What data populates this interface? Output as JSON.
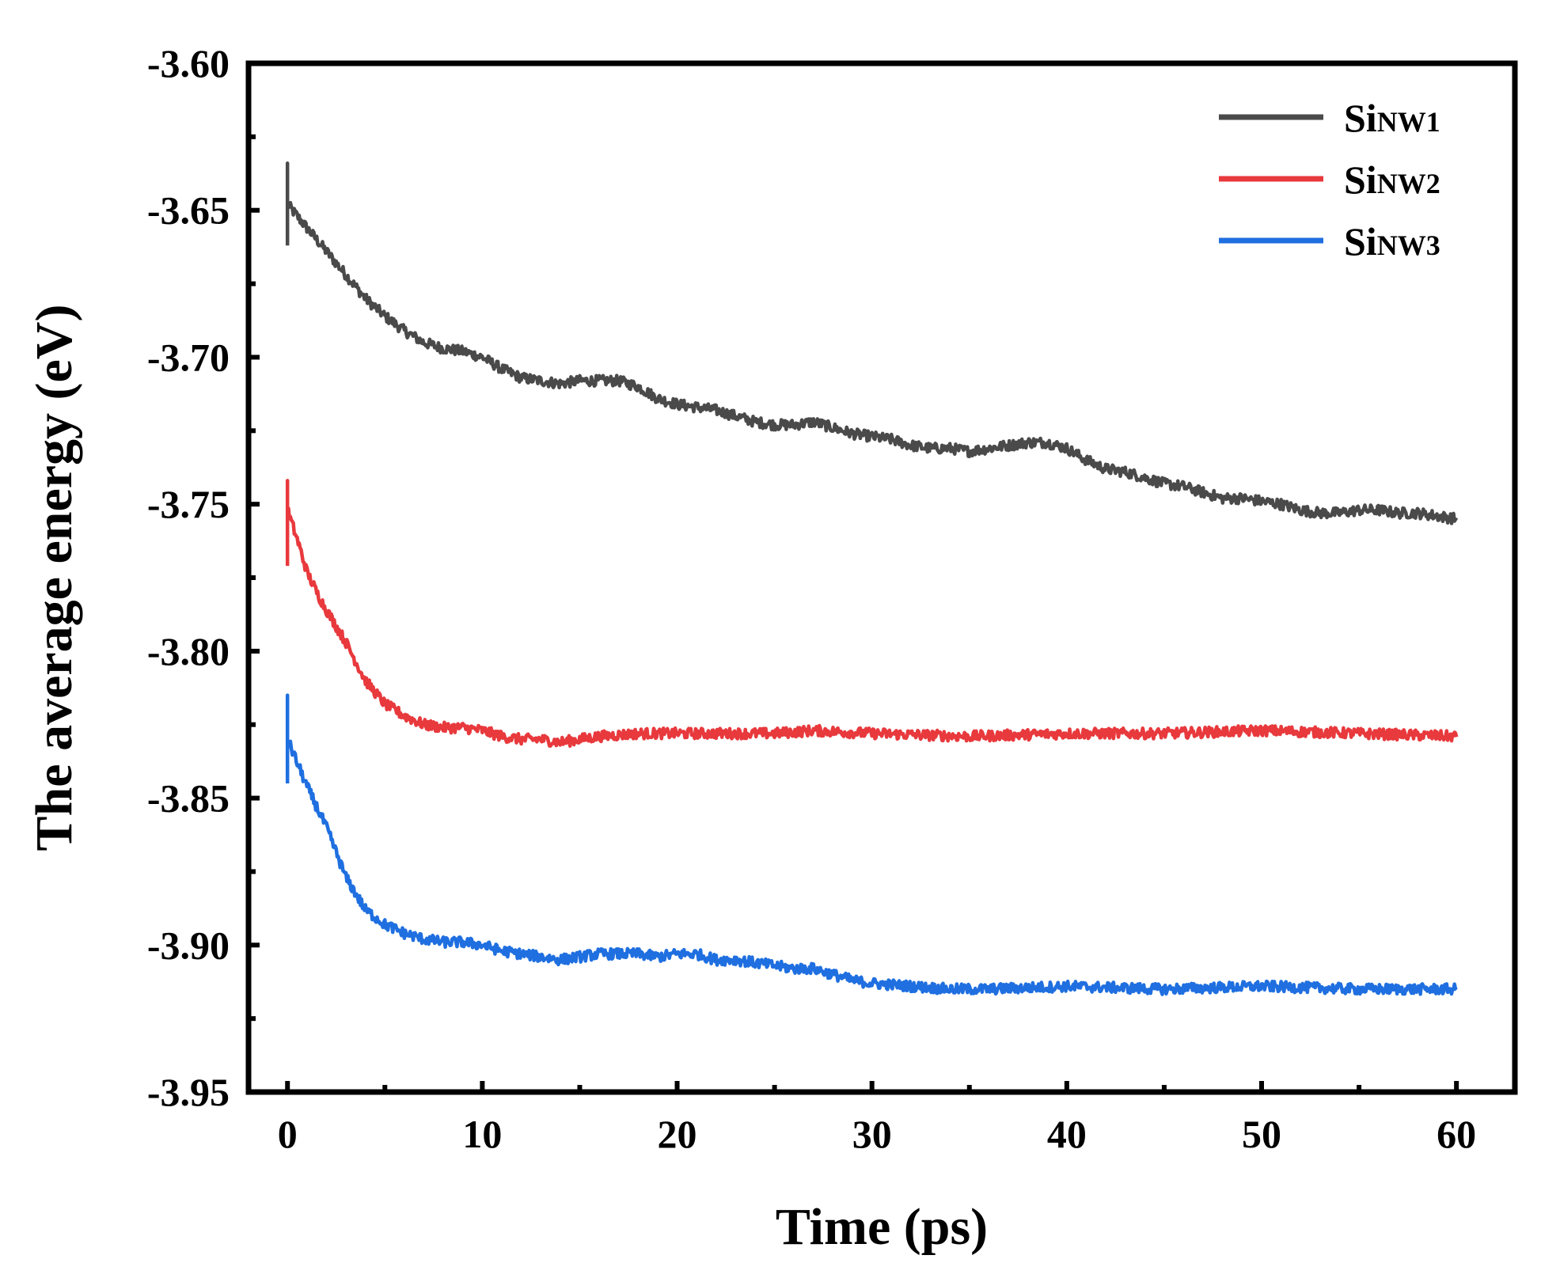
{
  "chart_data": {
    "type": "line",
    "title": "",
    "xlabel": "Time (ps)",
    "ylabel": "The average energy (eV)",
    "xlim": [
      -2,
      63
    ],
    "ylim": [
      -3.95,
      -3.6
    ],
    "xticks": [
      0,
      10,
      20,
      30,
      40,
      50,
      60
    ],
    "yticks": [
      -3.95,
      -3.9,
      -3.85,
      -3.8,
      -3.75,
      -3.7,
      -3.65,
      -3.6
    ],
    "xtick_labels": [
      "0",
      "10",
      "20",
      "30",
      "40",
      "50",
      "60"
    ],
    "ytick_labels": [
      "-3.95",
      "-3.90",
      "-3.85",
      "-3.80",
      "-3.75",
      "-3.70",
      "-3.65",
      "-3.60"
    ],
    "grid": false,
    "legend_position": "top-right",
    "noise_amplitude": 0.0018,
    "series": [
      {
        "name": "SiNW1",
        "legend_main": "Si",
        "legend_sub": "NW1",
        "color": "#4a4a4a",
        "start_spike": [
          -3.662,
          -3.634
        ],
        "x": [
          0,
          0.5,
          1,
          2,
          3,
          4,
          5,
          6,
          7,
          8,
          9,
          10,
          11,
          12,
          13,
          14,
          15,
          16,
          17,
          18,
          19,
          20,
          21,
          22,
          23,
          24,
          25,
          26,
          27,
          28,
          29,
          30,
          31,
          32,
          33,
          34,
          35,
          36,
          37,
          38,
          39,
          40,
          41,
          42,
          43,
          44,
          45,
          46,
          47,
          48,
          49,
          50,
          51,
          52,
          53,
          54,
          55,
          56,
          57,
          58,
          59,
          60
        ],
        "y": [
          -3.648,
          -3.652,
          -3.656,
          -3.664,
          -3.672,
          -3.68,
          -3.686,
          -3.691,
          -3.695,
          -3.697,
          -3.698,
          -3.7,
          -3.704,
          -3.707,
          -3.708,
          -3.709,
          -3.708,
          -3.708,
          -3.708,
          -3.71,
          -3.714,
          -3.716,
          -3.717,
          -3.718,
          -3.72,
          -3.722,
          -3.723,
          -3.723,
          -3.722,
          -3.724,
          -3.726,
          -3.727,
          -3.728,
          -3.73,
          -3.731,
          -3.731,
          -3.732,
          -3.731,
          -3.73,
          -3.729,
          -3.729,
          -3.731,
          -3.735,
          -3.738,
          -3.739,
          -3.741,
          -3.743,
          -3.744,
          -3.746,
          -3.748,
          -3.748,
          -3.749,
          -3.75,
          -3.752,
          -3.753,
          -3.753,
          -3.752,
          -3.752,
          -3.753,
          -3.753,
          -3.754,
          -3.755
        ]
      },
      {
        "name": "SiNW2",
        "legend_main": "Si",
        "legend_sub": "NW2",
        "color": "#e8393d",
        "start_spike": [
          -3.771,
          -3.742
        ],
        "x": [
          0,
          0.5,
          1,
          1.5,
          2,
          3,
          4,
          5,
          6,
          7,
          8,
          9,
          10,
          11,
          12,
          13,
          14,
          15,
          16,
          18,
          20,
          22,
          25,
          27,
          30,
          35,
          40,
          45,
          50,
          55,
          60
        ],
        "y": [
          -3.752,
          -3.762,
          -3.773,
          -3.78,
          -3.786,
          -3.797,
          -3.81,
          -3.818,
          -3.822,
          -3.825,
          -3.826,
          -3.826,
          -3.827,
          -3.829,
          -3.83,
          -3.83,
          -3.831,
          -3.83,
          -3.829,
          -3.828,
          -3.828,
          -3.828,
          -3.828,
          -3.827,
          -3.828,
          -3.829,
          -3.828,
          -3.828,
          -3.827,
          -3.828,
          -3.829
        ]
      },
      {
        "name": "SiNW3",
        "legend_main": "Si",
        "legend_sub": "NW3",
        "color": "#1f6fe0",
        "start_spike": [
          -3.845,
          -3.815
        ],
        "x": [
          0,
          0.5,
          1,
          1.5,
          2,
          3,
          4,
          5,
          6,
          7,
          8,
          9,
          10,
          11,
          12,
          13,
          14,
          15,
          16,
          17,
          18,
          19,
          20,
          21,
          22,
          23,
          24,
          25,
          26,
          27,
          28,
          29,
          30,
          32,
          34,
          36,
          40,
          45,
          50,
          55,
          60
        ],
        "y": [
          -3.83,
          -3.838,
          -3.846,
          -3.853,
          -3.86,
          -3.877,
          -3.888,
          -3.893,
          -3.896,
          -3.898,
          -3.899,
          -3.899,
          -3.9,
          -3.902,
          -3.903,
          -3.904,
          -3.905,
          -3.904,
          -3.903,
          -3.903,
          -3.903,
          -3.904,
          -3.903,
          -3.903,
          -3.905,
          -3.905,
          -3.906,
          -3.907,
          -3.908,
          -3.908,
          -3.91,
          -3.912,
          -3.913,
          -3.914,
          -3.915,
          -3.915,
          -3.914,
          -3.915,
          -3.914,
          -3.915,
          -3.915
        ]
      }
    ]
  }
}
